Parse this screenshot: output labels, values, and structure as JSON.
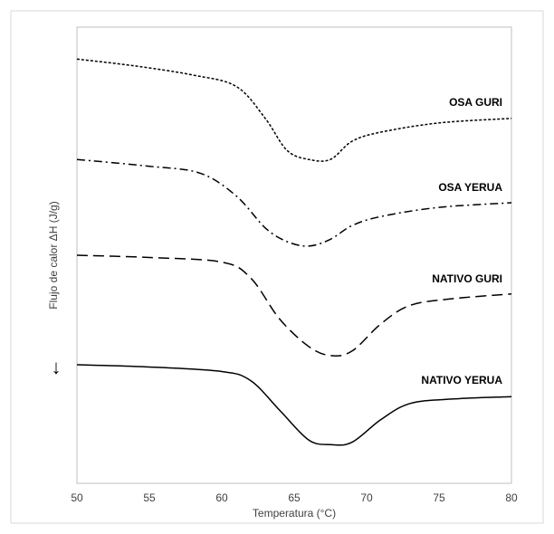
{
  "chart_data": {
    "type": "line",
    "title": "",
    "xlabel": "Temperatura (°C)",
    "ylabel": "Flujo de calor ΔH  (J/g)",
    "arrow_glyph": "↓",
    "xlim": [
      50,
      80
    ],
    "xticks": [
      50,
      55,
      60,
      65,
      70,
      75,
      80
    ],
    "grid": false,
    "legend": "none",
    "series": [
      {
        "name": "OSA GURI",
        "dash": "dotted",
        "color": "#000000",
        "points": [
          [
            50,
            0.93
          ],
          [
            54,
            0.915
          ],
          [
            58,
            0.895
          ],
          [
            61,
            0.87
          ],
          [
            63,
            0.8
          ],
          [
            64.5,
            0.73
          ],
          [
            66,
            0.71
          ],
          [
            67.5,
            0.71
          ],
          [
            69,
            0.75
          ],
          [
            71,
            0.77
          ],
          [
            75,
            0.79
          ],
          [
            80,
            0.8
          ]
        ]
      },
      {
        "name": "OSA YERUA",
        "dash": "dash-dot",
        "color": "#000000",
        "points": [
          [
            50,
            0.71
          ],
          [
            55,
            0.695
          ],
          [
            58.5,
            0.68
          ],
          [
            61,
            0.63
          ],
          [
            63,
            0.56
          ],
          [
            64.5,
            0.53
          ],
          [
            66,
            0.52
          ],
          [
            67.5,
            0.535
          ],
          [
            69,
            0.565
          ],
          [
            71,
            0.585
          ],
          [
            75,
            0.605
          ],
          [
            80,
            0.615
          ]
        ]
      },
      {
        "name": "NATIVO GURI",
        "dash": "dashed",
        "color": "#000000",
        "points": [
          [
            50,
            0.5
          ],
          [
            55,
            0.495
          ],
          [
            60,
            0.485
          ],
          [
            62,
            0.45
          ],
          [
            64,
            0.36
          ],
          [
            66,
            0.3
          ],
          [
            67.5,
            0.28
          ],
          [
            69,
            0.29
          ],
          [
            71,
            0.35
          ],
          [
            73,
            0.39
          ],
          [
            76,
            0.405
          ],
          [
            80,
            0.415
          ]
        ]
      },
      {
        "name": "NATIVO YERUA",
        "dash": "solid",
        "color": "#000000",
        "points": [
          [
            50,
            0.26
          ],
          [
            55,
            0.255
          ],
          [
            60,
            0.245
          ],
          [
            62,
            0.225
          ],
          [
            64,
            0.16
          ],
          [
            66,
            0.095
          ],
          [
            67.5,
            0.085
          ],
          [
            69,
            0.09
          ],
          [
            71,
            0.14
          ],
          [
            73,
            0.175
          ],
          [
            76,
            0.185
          ],
          [
            80,
            0.19
          ]
        ]
      }
    ],
    "annotations": [
      {
        "text": "OSA GURI",
        "series": 0
      },
      {
        "text": "OSA YERUA",
        "series": 1
      },
      {
        "text": "NATIVO GURI",
        "series": 2
      },
      {
        "text": "NATIVO YERUA",
        "series": 3
      }
    ]
  }
}
